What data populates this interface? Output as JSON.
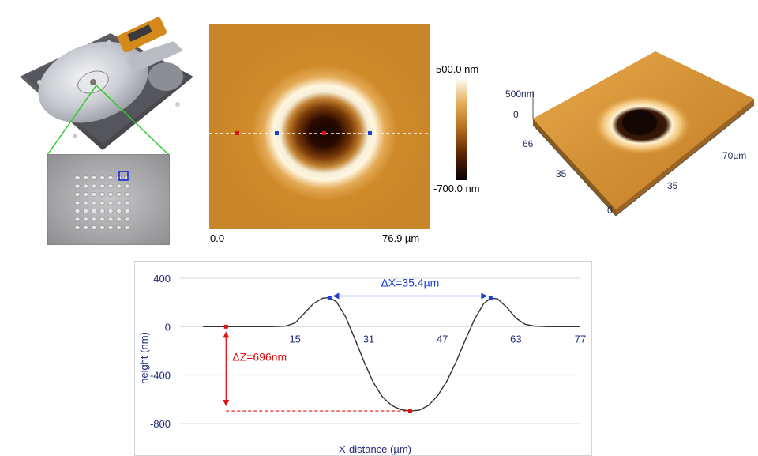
{
  "colorbar": {
    "max_label": "500.0 nm",
    "min_label": "-700.0 nm"
  },
  "afm2d": {
    "x_start": "0.0",
    "x_end": "76.9 µm"
  },
  "afm3d": {
    "z_label": "500nm",
    "z_zero": "0",
    "y_top": "66",
    "y_mid": "35",
    "y_zero": "0",
    "x_mid": "35",
    "x_end": "70µm"
  },
  "colors": {
    "profile_line": "#333333",
    "blue_marker": "#1f3fcf",
    "red_marker": "#e01010",
    "grid": "#d9d9d9",
    "tick_text": "#1f2a7a"
  },
  "chart_data": {
    "type": "line",
    "xlabel": "X-distance (µm)",
    "ylabel": "height (nm)",
    "xlim": [
      -10,
      77
    ],
    "ylim": [
      -800,
      400
    ],
    "xticks": [
      15,
      31,
      47,
      63,
      77
    ],
    "xtick_labels": [
      "15",
      "31",
      "47",
      "63",
      "77"
    ],
    "yticks": [
      400,
      0,
      -400,
      -800
    ],
    "ytick_labels": [
      "400",
      "0",
      "-400",
      "-800"
    ],
    "grid": true,
    "series": [
      {
        "x": [
          -5,
          0,
          5,
          10,
          13,
          15,
          17,
          19,
          21,
          22.5,
          24,
          26,
          28,
          30,
          32,
          34,
          36,
          38,
          40,
          42,
          44,
          46,
          48,
          50,
          52,
          54,
          56,
          57.5,
          59,
          61,
          63,
          65,
          67,
          70,
          73,
          77
        ],
        "y": [
          0,
          0,
          0,
          0,
          5,
          30,
          110,
          190,
          235,
          240,
          205,
          80,
          -100,
          -290,
          -460,
          -580,
          -650,
          -685,
          -696,
          -690,
          -650,
          -570,
          -450,
          -290,
          -110,
          60,
          190,
          235,
          230,
          160,
          70,
          20,
          5,
          0,
          0,
          0
        ]
      }
    ],
    "markers": [
      {
        "x": 0,
        "y": 0,
        "color": "red"
      },
      {
        "x": 22.5,
        "y": 240,
        "color": "blue"
      },
      {
        "x": 57.5,
        "y": 235,
        "color": "blue"
      },
      {
        "x": 40,
        "y": -696,
        "color": "red"
      }
    ],
    "annotations": [
      {
        "text": "ΔX=35.4µm",
        "color": "blue"
      },
      {
        "text": "ΔZ=696nm",
        "color": "red"
      }
    ]
  }
}
